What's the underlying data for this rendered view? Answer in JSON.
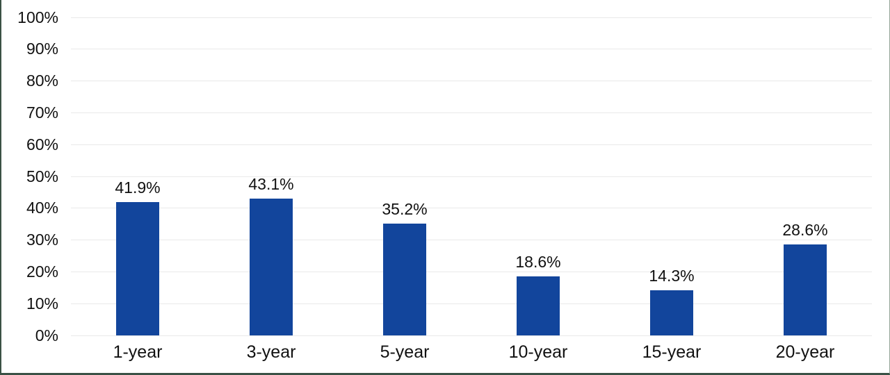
{
  "chart_data": {
    "type": "bar",
    "title": "",
    "xlabel": "",
    "ylabel": "",
    "categories": [
      "1-year",
      "3-year",
      "5-year",
      "10-year",
      "15-year",
      "20-year"
    ],
    "values": [
      41.9,
      43.1,
      35.2,
      18.6,
      14.3,
      28.6
    ],
    "data_labels": [
      "41.9%",
      "43.1%",
      "35.2%",
      "18.6%",
      "14.3%",
      "28.6%"
    ],
    "ylim": [
      0,
      100
    ],
    "y_ticks": [
      0,
      10,
      20,
      30,
      40,
      50,
      60,
      70,
      80,
      90,
      100
    ],
    "y_tick_labels": [
      "0%",
      "10%",
      "20%",
      "30%",
      "40%",
      "50%",
      "60%",
      "70%",
      "80%",
      "90%",
      "100%"
    ],
    "grid": "horizontal",
    "legend": "none",
    "colors": {
      "bar": "#12459c",
      "gridline": "#e9e9e9",
      "text": "#111111",
      "frame_border": "#3a5145",
      "background": "#ffffff"
    }
  }
}
